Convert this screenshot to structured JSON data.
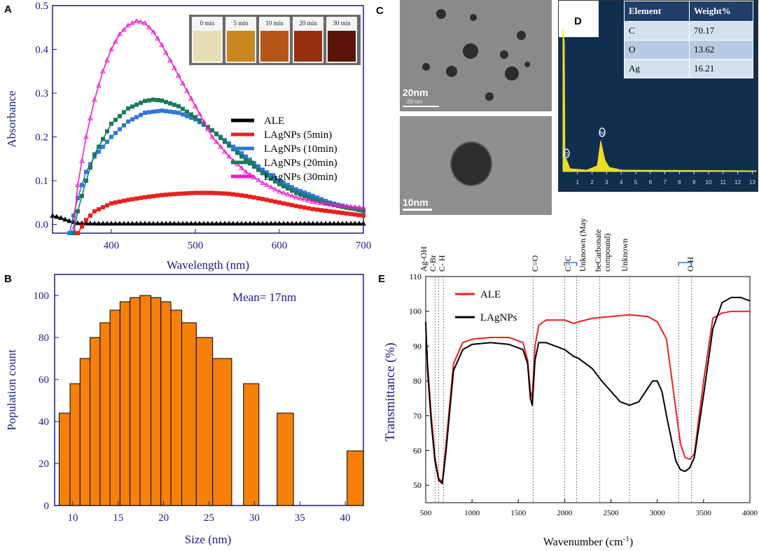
{
  "panels": {
    "A": "A",
    "B": "B",
    "C": "C",
    "D": "D",
    "E": "E"
  },
  "panelA": {
    "chart_data": {
      "type": "line",
      "xlabel": "Wavelength (nm)",
      "ylabel": "Absorbance",
      "xlim": [
        330,
        700
      ],
      "ylim": [
        -0.02,
        0.5
      ],
      "xticks": [
        400,
        500,
        600,
        700
      ],
      "yticks": [
        0.0,
        0.1,
        0.2,
        0.3,
        0.4,
        0.5
      ],
      "series": [
        {
          "name": "ALE",
          "color": "#000000",
          "marker": "triangle",
          "x": [
            330,
            340,
            350,
            360,
            380,
            400,
            450,
            500,
            550,
            600,
            650,
            700
          ],
          "y": [
            0.02,
            0.015,
            0.008,
            0.003,
            0.002,
            0.002,
            0.002,
            0.002,
            0.002,
            0.002,
            0.002,
            0.002
          ]
        },
        {
          "name": "LAgNPs (5min)",
          "color": "#e8211f",
          "marker": "square",
          "x": [
            360,
            370,
            380,
            400,
            420,
            440,
            460,
            480,
            500,
            520,
            540,
            560,
            580,
            600,
            620,
            640,
            660,
            680,
            700
          ],
          "y": [
            -0.02,
            0.01,
            0.03,
            0.048,
            0.056,
            0.062,
            0.067,
            0.07,
            0.072,
            0.072,
            0.07,
            0.065,
            0.058,
            0.05,
            0.042,
            0.035,
            0.03,
            0.025,
            0.02
          ]
        },
        {
          "name": "LAgNPs (10min)",
          "color": "#2f78d8",
          "marker": "square",
          "x": [
            350,
            360,
            370,
            380,
            400,
            420,
            440,
            460,
            480,
            500,
            520,
            540,
            560,
            580,
            600,
            620,
            640,
            660,
            680,
            700
          ],
          "y": [
            -0.02,
            0.06,
            0.12,
            0.155,
            0.2,
            0.235,
            0.255,
            0.26,
            0.255,
            0.24,
            0.215,
            0.185,
            0.155,
            0.125,
            0.1,
            0.08,
            0.065,
            0.05,
            0.04,
            0.03
          ]
        },
        {
          "name": "LAgNPs (20min)",
          "color": "#197a5a",
          "marker": "square",
          "x": [
            355,
            360,
            370,
            380,
            400,
            420,
            440,
            450,
            460,
            480,
            500,
            520,
            540,
            560,
            580,
            600,
            620,
            640,
            660,
            680,
            700
          ],
          "y": [
            -0.02,
            0.03,
            0.1,
            0.16,
            0.23,
            0.265,
            0.282,
            0.285,
            0.283,
            0.27,
            0.245,
            0.215,
            0.18,
            0.147,
            0.117,
            0.092,
            0.072,
            0.057,
            0.046,
            0.038,
            0.032
          ]
        },
        {
          "name": "LAgNPs (30min)",
          "color": "#ec1fd0",
          "marker": "triangle",
          "x": [
            355,
            360,
            370,
            380,
            390,
            400,
            410,
            420,
            430,
            440,
            450,
            460,
            480,
            500,
            520,
            540,
            560,
            580,
            600,
            620,
            640,
            660,
            680,
            700
          ],
          "y": [
            -0.01,
            0.09,
            0.2,
            0.285,
            0.35,
            0.4,
            0.435,
            0.455,
            0.465,
            0.46,
            0.44,
            0.41,
            0.34,
            0.27,
            0.2,
            0.155,
            0.12,
            0.095,
            0.075,
            0.062,
            0.052,
            0.046,
            0.042,
            0.038
          ]
        }
      ]
    },
    "vial_labels": [
      "0 min",
      "5 min",
      "10 min",
      "20 min",
      "30 min"
    ],
    "vial_colors": [
      "#e6dfb4",
      "#c8861e",
      "#b45617",
      "#98300f",
      "#5a1408"
    ]
  },
  "panelB": {
    "chart_data": {
      "type": "bar",
      "xlabel": "Size (nm)",
      "ylabel": "Population count",
      "annotation": "Mean= 17nm",
      "xlim": [
        8,
        42
      ],
      "ylim": [
        0,
        110
      ],
      "xticks": [
        10,
        15,
        20,
        25,
        30,
        35,
        40
      ],
      "yticks": [
        0,
        20,
        40,
        60,
        80,
        100
      ],
      "color": "#f7800a",
      "bins": [
        {
          "x0": 8.5,
          "x1": 9.7,
          "value": 44
        },
        {
          "x0": 9.7,
          "x1": 10.8,
          "value": 58
        },
        {
          "x0": 10.8,
          "x1": 11.9,
          "value": 70
        },
        {
          "x0": 11.9,
          "x1": 13.0,
          "value": 80
        },
        {
          "x0": 13.0,
          "x1": 14.1,
          "value": 87
        },
        {
          "x0": 14.1,
          "x1": 15.2,
          "value": 93
        },
        {
          "x0": 15.2,
          "x1": 16.3,
          "value": 97
        },
        {
          "x0": 16.3,
          "x1": 17.4,
          "value": 99
        },
        {
          "x0": 17.4,
          "x1": 18.6,
          "value": 100
        },
        {
          "x0": 18.6,
          "x1": 19.7,
          "value": 99
        },
        {
          "x0": 19.7,
          "x1": 20.8,
          "value": 97
        },
        {
          "x0": 20.8,
          "x1": 22.0,
          "value": 93
        },
        {
          "x0": 22.0,
          "x1": 23.6,
          "value": 87
        },
        {
          "x0": 23.6,
          "x1": 25.4,
          "value": 80
        },
        {
          "x0": 25.4,
          "x1": 27.5,
          "value": 70
        },
        {
          "x0": 28.8,
          "x1": 30.5,
          "value": 58
        },
        {
          "x0": 32.5,
          "x1": 34.3,
          "value": 44
        },
        {
          "x0": 40.2,
          "x1": 42,
          "value": 26
        }
      ]
    }
  },
  "panelC": {
    "scale_top": "20nm",
    "scale_bottom": "10nm",
    "scale_small": "20 nm"
  },
  "panelD": {
    "table": {
      "headers": [
        "Element",
        "Weight%"
      ],
      "rows": [
        [
          "C",
          "70.17"
        ],
        [
          "O",
          "13.62"
        ],
        [
          "Ag",
          "16.21"
        ]
      ]
    },
    "xticks": [
      "1",
      "2",
      "3",
      "4",
      "5",
      "6",
      "7",
      "8",
      "9",
      "10",
      "11",
      "12",
      "13"
    ],
    "peak_labels": [
      "O",
      "Ag"
    ]
  },
  "panelE": {
    "chart_data": {
      "type": "line",
      "xlabel": "Wavenumber (cm-1)",
      "ylabel": "Transmittance (%)",
      "xlim": [
        500,
        4000
      ],
      "ylim": [
        45,
        110
      ],
      "xticks": [
        500,
        1000,
        1500,
        2000,
        2500,
        3000,
        3500,
        4000
      ],
      "yticks": [
        50,
        60,
        70,
        80,
        90,
        100,
        110
      ],
      "series": [
        {
          "name": "ALE",
          "color": "#e8211f",
          "x": [
            500,
            520,
            560,
            600,
            640,
            680,
            720,
            800,
            900,
            1000,
            1200,
            1400,
            1550,
            1600,
            1630,
            1650,
            1680,
            1720,
            1800,
            2000,
            2100,
            2150,
            2300,
            2500,
            2700,
            2900,
            3000,
            3100,
            3200,
            3250,
            3300,
            3350,
            3400,
            3500,
            3600,
            3700,
            3800,
            3900,
            4000
          ],
          "y": [
            95,
            85,
            70,
            58,
            52,
            51,
            62,
            85,
            91,
            92,
            92.5,
            92.5,
            91,
            86,
            77,
            75,
            90,
            96,
            97.5,
            97.5,
            96.5,
            97,
            98,
            98.5,
            99,
            98.5,
            97,
            92,
            72,
            62,
            58,
            57.5,
            59,
            80,
            98,
            99.5,
            100,
            100,
            100
          ]
        },
        {
          "name": "LAgNPs",
          "color": "#000000",
          "x": [
            500,
            520,
            560,
            600,
            640,
            680,
            720,
            800,
            900,
            1000,
            1200,
            1400,
            1550,
            1600,
            1630,
            1650,
            1680,
            1720,
            1800,
            2000,
            2100,
            2150,
            2300,
            2400,
            2500,
            2600,
            2700,
            2800,
            2900,
            2950,
            3000,
            3050,
            3100,
            3200,
            3250,
            3300,
            3350,
            3400,
            3500,
            3600,
            3700,
            3800,
            3900,
            4000
          ],
          "y": [
            97,
            83,
            68,
            57,
            51.5,
            50.5,
            60,
            83,
            89,
            90.5,
            91,
            90.5,
            89,
            85,
            75,
            73,
            86,
            91,
            91,
            89,
            87,
            86.5,
            83.5,
            80,
            77,
            74,
            73,
            74,
            78,
            80,
            80,
            77,
            70,
            57,
            54.5,
            54,
            55,
            58,
            76,
            95,
            102.5,
            104,
            104,
            103
          ]
        }
      ],
      "legend": [
        "ALE",
        "LAgNPs"
      ]
    },
    "annotations": [
      "Ag-OH",
      "C-Br",
      "C- H",
      "C=O",
      "C=C",
      "Unknown (May",
      "beCarbonate",
      "compound)",
      "Unknown",
      "O-H"
    ]
  }
}
